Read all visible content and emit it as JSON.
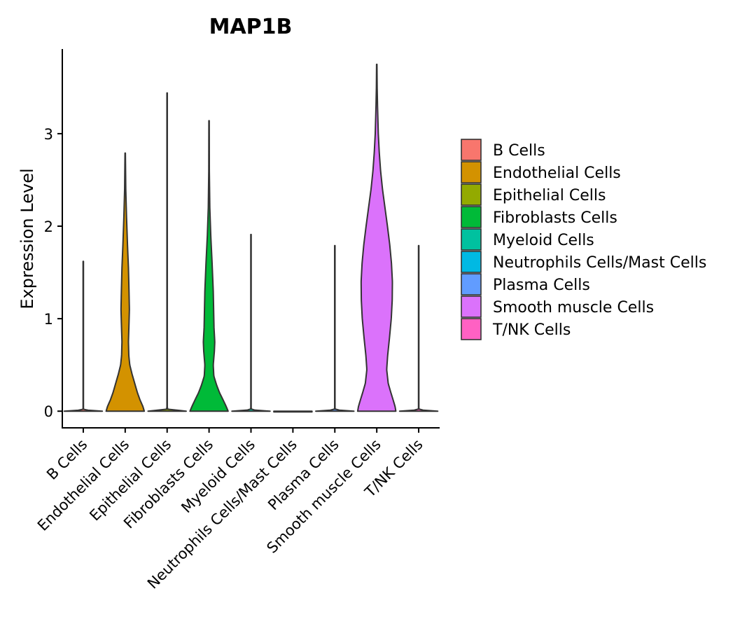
{
  "chart_data": {
    "type": "violin",
    "title": "MAP1B",
    "xlabel": "",
    "ylabel": "Expression Level",
    "ylim": [
      -0.18,
      3.9
    ],
    "yticks": [
      0,
      1,
      2,
      3
    ],
    "categories": [
      "B Cells",
      "Endothelial Cells",
      "Epithelial Cells",
      "Fibroblasts Cells",
      "Myeloid Cells",
      "Neutrophils Cells/Mast Cells",
      "Plasma Cells",
      "Smooth muscle Cells",
      "T/NK Cells"
    ],
    "colors": [
      "#F8766D",
      "#D39200",
      "#93AA00",
      "#00BA38",
      "#00C19F",
      "#00B9E3",
      "#619CFF",
      "#DB72FB",
      "#FF61C3"
    ],
    "series": [
      {
        "name": "B Cells",
        "max": 1.62,
        "profile": [
          [
            0,
            1.0
          ],
          [
            0.005,
            0.5
          ],
          [
            0.015,
            0.04
          ],
          [
            0.03,
            0.01
          ],
          [
            1.62,
            0.01
          ]
        ]
      },
      {
        "name": "Endothelial Cells",
        "max": 2.79,
        "profile": [
          [
            0,
            1.0
          ],
          [
            0.05,
            0.93
          ],
          [
            0.12,
            0.78
          ],
          [
            0.2,
            0.64
          ],
          [
            0.3,
            0.5
          ],
          [
            0.4,
            0.36
          ],
          [
            0.5,
            0.24
          ],
          [
            0.6,
            0.19
          ],
          [
            0.75,
            0.17
          ],
          [
            0.95,
            0.2
          ],
          [
            1.1,
            0.22
          ],
          [
            1.3,
            0.2
          ],
          [
            1.55,
            0.17
          ],
          [
            1.8,
            0.12
          ],
          [
            2.1,
            0.07
          ],
          [
            2.4,
            0.03
          ],
          [
            2.79,
            0.01
          ]
        ]
      },
      {
        "name": "Epithelial Cells",
        "max": 3.44,
        "profile": [
          [
            0,
            1.0
          ],
          [
            0.005,
            0.6
          ],
          [
            0.015,
            0.05
          ],
          [
            0.03,
            0.01
          ],
          [
            3.44,
            0.01
          ]
        ]
      },
      {
        "name": "Fibroblasts Cells",
        "max": 3.14,
        "profile": [
          [
            0,
            1.0
          ],
          [
            0.05,
            0.9
          ],
          [
            0.12,
            0.74
          ],
          [
            0.2,
            0.55
          ],
          [
            0.28,
            0.4
          ],
          [
            0.38,
            0.25
          ],
          [
            0.5,
            0.22
          ],
          [
            0.65,
            0.28
          ],
          [
            0.75,
            0.3
          ],
          [
            0.9,
            0.26
          ],
          [
            1.1,
            0.24
          ],
          [
            1.3,
            0.22
          ],
          [
            1.6,
            0.16
          ],
          [
            1.9,
            0.09
          ],
          [
            2.2,
            0.04
          ],
          [
            2.6,
            0.015
          ],
          [
            3.14,
            0.01
          ]
        ]
      },
      {
        "name": "Myeloid Cells",
        "max": 1.91,
        "profile": [
          [
            0,
            1.0
          ],
          [
            0.005,
            0.55
          ],
          [
            0.015,
            0.04
          ],
          [
            0.03,
            0.01
          ],
          [
            1.91,
            0.01
          ]
        ]
      },
      {
        "name": "Neutrophils Cells/Mast Cells",
        "max": 0.0,
        "profile": [
          [
            0,
            1.0
          ]
        ]
      },
      {
        "name": "Plasma Cells",
        "max": 1.79,
        "profile": [
          [
            0,
            1.0
          ],
          [
            0.005,
            0.55
          ],
          [
            0.015,
            0.04
          ],
          [
            0.03,
            0.01
          ],
          [
            1.79,
            0.01
          ]
        ]
      },
      {
        "name": "Smooth muscle Cells",
        "max": 3.75,
        "profile": [
          [
            0,
            1.0
          ],
          [
            0.05,
            0.96
          ],
          [
            0.12,
            0.86
          ],
          [
            0.2,
            0.74
          ],
          [
            0.3,
            0.6
          ],
          [
            0.45,
            0.52
          ],
          [
            0.6,
            0.57
          ],
          [
            0.8,
            0.67
          ],
          [
            1.0,
            0.76
          ],
          [
            1.2,
            0.81
          ],
          [
            1.4,
            0.82
          ],
          [
            1.6,
            0.77
          ],
          [
            1.8,
            0.68
          ],
          [
            2.0,
            0.56
          ],
          [
            2.2,
            0.43
          ],
          [
            2.4,
            0.3
          ],
          [
            2.6,
            0.2
          ],
          [
            2.8,
            0.13
          ],
          [
            3.0,
            0.08
          ],
          [
            3.3,
            0.04
          ],
          [
            3.5,
            0.02
          ],
          [
            3.75,
            0.01
          ]
        ]
      },
      {
        "name": "T/NK Cells",
        "max": 1.79,
        "profile": [
          [
            0,
            1.0
          ],
          [
            0.005,
            0.55
          ],
          [
            0.015,
            0.04
          ],
          [
            0.03,
            0.01
          ],
          [
            1.79,
            0.01
          ]
        ]
      }
    ],
    "legend": {
      "position": "right",
      "entries": [
        "B Cells",
        "Endothelial Cells",
        "Epithelial Cells",
        "Fibroblasts Cells",
        "Myeloid Cells",
        "Neutrophils Cells/Mast Cells",
        "Plasma Cells",
        "Smooth muscle Cells",
        "T/NK Cells"
      ]
    },
    "grid": false
  }
}
